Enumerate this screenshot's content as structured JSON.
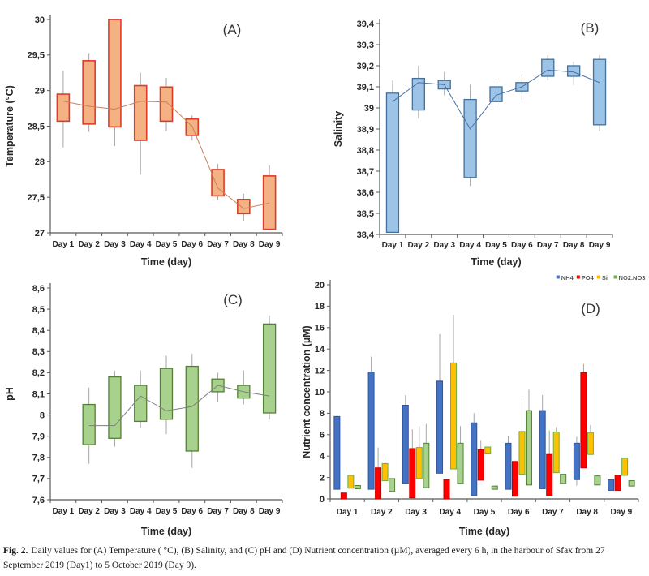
{
  "caption": {
    "label": "Fig. 2.",
    "text": "Daily values for (A) Temperature ( °C), (B) Salinity, and (C) pH and (D) Nutrient concentration (µM), averaged every 6 h, in the harbour of Sfax from 27 September 2019 (Day1) to 5 October 2019 (Day 9)."
  },
  "chart_data": [
    {
      "panel": "A",
      "type": "box",
      "panel_label": "(A)",
      "xlabel": "Time (day)",
      "ylabel": "Temperature (°C)",
      "ylim": [
        27,
        30
      ],
      "ytick_values": [
        30,
        29.5,
        29,
        28.5,
        28,
        27.5,
        27
      ],
      "ytick_labels": [
        "30",
        "29,5",
        "29",
        "28,5",
        "28",
        "27,5",
        "27"
      ],
      "categories": [
        "Day 1",
        "Day 2",
        "Day 3",
        "Day 4",
        "Day 5",
        "Day 6",
        "Day 7",
        "Day 8",
        "Day 9"
      ],
      "colors": {
        "fill": "#F4B183",
        "border": "#E03B28",
        "whisker": "#A6A6A6",
        "mean_line": "#C9805E"
      },
      "boxes": [
        {
          "lo": 28.57,
          "hi": 28.95,
          "wlo": 28.2,
          "whi": 29.28,
          "mean": 28.85
        },
        {
          "lo": 28.53,
          "hi": 29.42,
          "wlo": 28.42,
          "whi": 29.53,
          "mean": 28.78
        },
        {
          "lo": 28.49,
          "hi": 30.0,
          "wlo": 28.22,
          "mean": 28.74
        },
        {
          "lo": 28.3,
          "hi": 29.07,
          "wlo": 27.82,
          "whi": 29.25,
          "mean": 28.85
        },
        {
          "lo": 28.57,
          "hi": 29.05,
          "wlo": 28.43,
          "whi": 29.18,
          "mean": 28.84
        },
        {
          "lo": 28.37,
          "hi": 28.6,
          "wlo": 28.3,
          "whi": 28.65,
          "mean": 28.5
        },
        {
          "lo": 27.52,
          "hi": 27.89,
          "wlo": 27.46,
          "whi": 27.97,
          "mean": 27.63
        },
        {
          "lo": 27.27,
          "hi": 27.47,
          "wlo": 27.17,
          "whi": 27.55,
          "mean": 27.34
        },
        {
          "lo": 27.05,
          "hi": 27.8,
          "whi": 27.95,
          "mean": 27.42
        }
      ]
    },
    {
      "panel": "B",
      "type": "box",
      "panel_label": "(B)",
      "xlabel": "Time (day)",
      "ylabel": "Salinity",
      "ylim": [
        38.4,
        39.4
      ],
      "ytick_values": [
        39.4,
        39.3,
        39.2,
        39.1,
        39,
        38.9,
        38.8,
        38.7,
        38.6,
        38.5,
        38.4
      ],
      "ytick_labels": [
        "39,4",
        "39,3",
        "39,2",
        "39,1",
        "39",
        "38,9",
        "38,8",
        "38,7",
        "38,6",
        "38,5",
        "38,4"
      ],
      "categories": [
        "Day 1",
        "Day 2",
        "Day 3",
        "Day 4",
        "Day 5",
        "Day 6",
        "Day 7",
        "Day 8",
        "Day 9"
      ],
      "colors": {
        "fill": "#9DC3E6",
        "border": "#41719C",
        "whisker": "#A6A6A6",
        "mean_line": "#4A6FA5"
      },
      "boxes": [
        {
          "lo": 38.41,
          "hi": 39.07,
          "whi": 39.13,
          "mean": 39.03
        },
        {
          "lo": 38.99,
          "hi": 39.14,
          "wlo": 38.95,
          "whi": 39.2,
          "mean": 39.12
        },
        {
          "lo": 39.09,
          "hi": 39.13,
          "wlo": 39.06,
          "whi": 39.17,
          "mean": 39.11
        },
        {
          "lo": 38.67,
          "hi": 39.04,
          "wlo": 38.63,
          "whi": 39.11,
          "mean": 38.9
        },
        {
          "lo": 39.03,
          "hi": 39.1,
          "wlo": 39.0,
          "whi": 39.14,
          "mean": 39.06
        },
        {
          "lo": 39.08,
          "hi": 39.12,
          "wlo": 39.04,
          "whi": 39.16,
          "mean": 39.1
        },
        {
          "lo": 39.15,
          "hi": 39.23,
          "wlo": 39.13,
          "whi": 39.25,
          "mean": 39.18
        },
        {
          "lo": 39.15,
          "hi": 39.2,
          "wlo": 39.11,
          "whi": 39.22,
          "mean": 39.17
        },
        {
          "lo": 38.92,
          "hi": 39.23,
          "wlo": 38.89,
          "whi": 39.25,
          "mean": 39.12
        }
      ]
    },
    {
      "panel": "C",
      "type": "box",
      "panel_label": "(C)",
      "xlabel": "Time (day)",
      "ylabel": "pH",
      "ylim": [
        7.6,
        8.6
      ],
      "ytick_values": [
        8.6,
        8.5,
        8.4,
        8.3,
        8.2,
        8.1,
        8,
        7.9,
        7.8,
        7.7,
        7.6
      ],
      "ytick_labels": [
        "8,6",
        "8,5",
        "8,4",
        "8,3",
        "8,2",
        "8,1",
        "8",
        "7,9",
        "7,8",
        "7,7",
        "7,6"
      ],
      "categories": [
        "Day 1",
        "Day 2",
        "Day 3",
        "Day 4",
        "Day 5",
        "Day 6",
        "Day 7",
        "Day 8",
        "Day 9"
      ],
      "colors": {
        "fill": "#A9D18E",
        "border": "#538135",
        "whisker": "#A6A6A6",
        "mean_line": "#7F7F7F"
      },
      "boxes": [
        null,
        {
          "lo": 7.86,
          "hi": 8.05,
          "wlo": 7.77,
          "whi": 8.13,
          "mean": 7.95
        },
        {
          "lo": 7.89,
          "hi": 8.18,
          "wlo": 7.85,
          "whi": 8.21,
          "mean": 7.95
        },
        {
          "lo": 7.97,
          "hi": 8.14,
          "wlo": 7.94,
          "whi": 8.21,
          "mean": 8.09
        },
        {
          "lo": 7.98,
          "hi": 8.22,
          "wlo": 7.91,
          "whi": 8.28,
          "mean": 8.02
        },
        {
          "lo": 7.83,
          "hi": 8.23,
          "wlo": 7.75,
          "whi": 8.29,
          "mean": 8.04
        },
        {
          "lo": 8.11,
          "hi": 8.17,
          "wlo": 8.06,
          "whi": 8.2,
          "mean": 8.14
        },
        {
          "lo": 8.08,
          "hi": 8.14,
          "wlo": 8.05,
          "whi": 8.21,
          "mean": 8.11
        },
        {
          "lo": 8.01,
          "hi": 8.43,
          "wlo": 7.98,
          "whi": 8.47,
          "mean": 8.09
        }
      ]
    },
    {
      "panel": "D",
      "type": "grouped-box",
      "panel_label": "(D)",
      "xlabel": "Time (day)",
      "ylabel": "Nutrient concentration (µM)",
      "ylim": [
        0,
        20
      ],
      "ytick_values": [
        20,
        18,
        16,
        14,
        12,
        10,
        8,
        6,
        4,
        2,
        0
      ],
      "ytick_labels": [
        "20",
        "18",
        "16",
        "14",
        "12",
        "10",
        "8",
        "6",
        "4",
        "2",
        "0"
      ],
      "categories": [
        "Day 1",
        "Day 2",
        "Day 3",
        "Day 4",
        "Day 5",
        "Day 6",
        "Day 7",
        "Day 8",
        "Day 9"
      ],
      "whisker_color": "#A6A6A6",
      "legend_position": "top-right",
      "series": [
        {
          "name": "NH4",
          "fill": "#4472C4",
          "border": "#2F5597",
          "legend_color": "#4472C4",
          "bars": [
            {
              "lo": 0.9,
              "hi": 7.7
            },
            {
              "lo": 0.9,
              "hi": 11.85,
              "whi": 13.3
            },
            {
              "lo": 1.45,
              "hi": 8.75,
              "whi": 9.7
            },
            {
              "lo": 2.4,
              "hi": 11.0,
              "whi": 15.4
            },
            {
              "lo": 0.3,
              "hi": 7.1,
              "whi": 8.0
            },
            {
              "lo": 0.9,
              "hi": 5.2,
              "whi": 5.9
            },
            {
              "lo": 0.95,
              "hi": 8.25,
              "whi": 9.7
            },
            {
              "lo": 1.8,
              "hi": 5.2,
              "wlo": 1.25,
              "whi": 5.8
            },
            {
              "lo": 0.8,
              "hi": 1.8
            }
          ]
        },
        {
          "name": "PO4",
          "fill": "#FF0000",
          "border": "#C00000",
          "legend_color": "#FF0000",
          "bars": [
            {
              "lo": 0,
              "hi": 0.55
            },
            {
              "lo": 0,
              "hi": 2.9,
              "whi": 4.8
            },
            {
              "lo": 0.1,
              "hi": 4.7,
              "whi": 6.5
            },
            {
              "lo": 0,
              "hi": 1.8
            },
            {
              "lo": 1.75,
              "hi": 4.6,
              "whi": 5.5
            },
            {
              "lo": 0.25,
              "hi": 3.5
            },
            {
              "lo": 0.3,
              "hi": 4.15,
              "whi": 6.4
            },
            {
              "lo": 2.9,
              "hi": 11.8,
              "whi": 12.6
            },
            {
              "lo": 0.8,
              "hi": 2.2
            }
          ]
        },
        {
          "name": "Si",
          "fill": "#FFC000",
          "border": "#70AD47",
          "legend_color": "#FFC000",
          "bars": [
            {
              "lo": 1.0,
              "hi": 2.2
            },
            {
              "lo": 1.7,
              "hi": 3.3,
              "whi": 3.9
            },
            {
              "lo": 1.9,
              "hi": 4.8,
              "whi": 6.8
            },
            {
              "lo": 2.8,
              "hi": 12.7,
              "whi": 17.2
            },
            {
              "lo": 4.2,
              "hi": 4.85
            },
            {
              "lo": 2.3,
              "hi": 6.3,
              "whi": 9.4
            },
            {
              "lo": 2.45,
              "hi": 6.25,
              "whi": 6.7
            },
            {
              "lo": 4.15,
              "hi": 6.2,
              "whi": 6.9
            },
            {
              "lo": 2.2,
              "hi": 3.8
            }
          ]
        },
        {
          "name": "NO2.NO3",
          "fill": "#A9D18E",
          "border": "#538135",
          "legend_color": "#70AD47",
          "bars": [
            {
              "lo": 0.95,
              "hi": 1.25
            },
            {
              "lo": 0.7,
              "hi": 1.9
            },
            {
              "lo": 1.05,
              "hi": 5.2,
              "whi": 7.0
            },
            {
              "lo": 1.45,
              "hi": 5.2,
              "whi": 6.8
            },
            {
              "lo": 0.9,
              "hi": 1.2
            },
            {
              "lo": 1.3,
              "hi": 8.25,
              "whi": 10.2
            },
            {
              "lo": 1.45,
              "hi": 2.3
            },
            {
              "lo": 1.3,
              "hi": 2.15
            },
            {
              "lo": 1.2,
              "hi": 1.7
            }
          ]
        }
      ]
    }
  ]
}
